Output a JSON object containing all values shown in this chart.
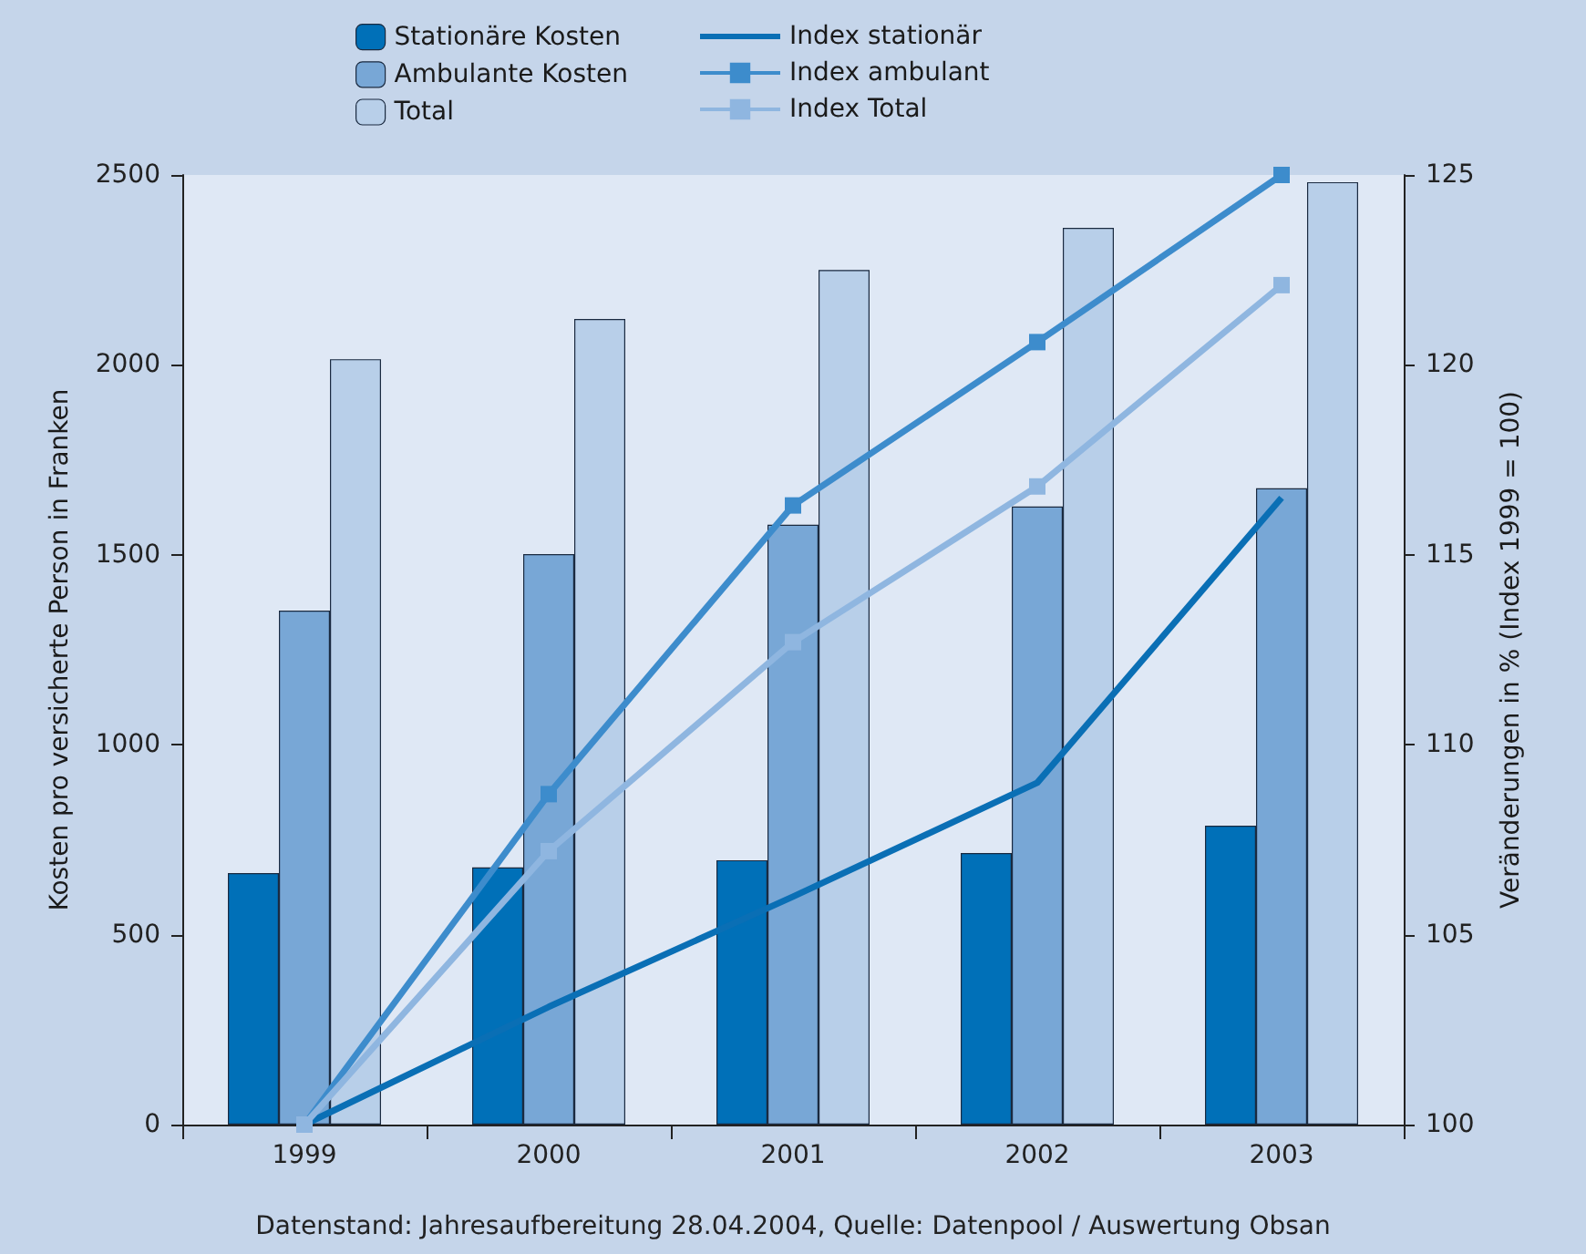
{
  "chart_data": {
    "type": "bar",
    "ylabel": "Kosten pro versicherte Person in Franken",
    "y2label": "Veränderungen in % (Index 1999 = 100)",
    "categories": [
      "1999",
      "2000",
      "2001",
      "2002",
      "2003"
    ],
    "series": [
      {
        "name": "Stationäre Kosten",
        "color": "#0070b8",
        "values": [
          662,
          677,
          696,
          715,
          787
        ]
      },
      {
        "name": "Ambulante Kosten",
        "color": "#78a7d6",
        "values": [
          1353,
          1502,
          1579,
          1627,
          1675
        ]
      },
      {
        "name": "Total",
        "color": "#b8cfe9",
        "values": [
          2015,
          2121,
          2250,
          2361,
          2481
        ]
      },
      {
        "name": "Index stationär",
        "type": "line",
        "axis": "y2",
        "marker": "none",
        "color": "#0a6fb5",
        "values": [
          100,
          103.1,
          106,
          109,
          116.5
        ]
      },
      {
        "name": "Index ambulant",
        "type": "line",
        "axis": "y2",
        "marker": "square",
        "color": "#3d8ccc",
        "values": [
          100,
          108.7,
          116.3,
          120.6,
          125
        ]
      },
      {
        "name": "Index Total",
        "type": "line",
        "axis": "y2",
        "marker": "square",
        "color": "#8fb6e0",
        "values": [
          100,
          107.2,
          112.7,
          116.8,
          122.1
        ]
      }
    ],
    "ylim": [
      0,
      2500
    ],
    "yticks": [
      0,
      500,
      1000,
      1500,
      2000,
      2500
    ],
    "y2lim": [
      100,
      125
    ],
    "y2ticks": [
      100,
      105,
      110,
      115,
      120,
      125
    ],
    "grid": false,
    "legend": "top",
    "annotations": [
      "Datenstand: Jahresaufbereitung 28.04.2004, Quelle: Datenpool / Auswertung Obsan"
    ]
  }
}
